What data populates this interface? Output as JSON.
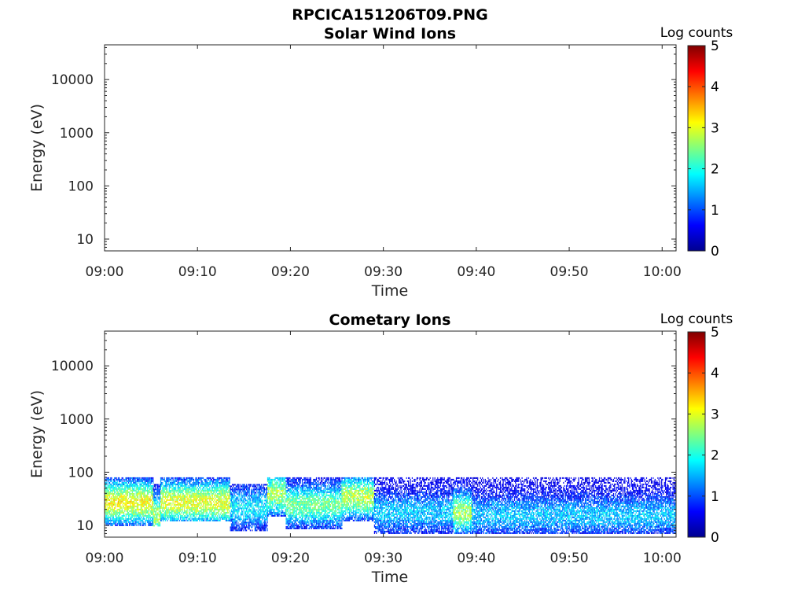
{
  "figure_title": "RPCICA151206T09.PNG",
  "colors": {
    "axis": "#262626",
    "colormap": "jet",
    "colormap_stops": [
      "#00008f",
      "#0000ff",
      "#00ffff",
      "#ffff00",
      "#ff0000",
      "#800000"
    ]
  },
  "chart_data": [
    {
      "type": "heatmap",
      "title": "Solar Wind Ions",
      "xlabel": "Time",
      "ylabel": "Energy (eV)",
      "x_tick_labels": [
        "09:00",
        "09:10",
        "09:20",
        "09:30",
        "09:40",
        "09:50",
        "10:00"
      ],
      "x_tick_minutes": [
        0,
        10,
        20,
        30,
        40,
        50,
        60
      ],
      "xlim_minutes": [
        0,
        61.5
      ],
      "y_scale": "log",
      "ylim": [
        6,
        45000
      ],
      "y_tick_labels": [
        "10",
        "100",
        "1000",
        "10000"
      ],
      "y_tick_values": [
        10,
        100,
        1000,
        10000
      ],
      "colorbar": {
        "label": "Log counts",
        "range": [
          0,
          5
        ],
        "tick_labels": [
          "0",
          "1",
          "2",
          "3",
          "4",
          "5"
        ]
      },
      "regions": []
    },
    {
      "type": "heatmap",
      "title": "Cometary Ions",
      "xlabel": "Time",
      "ylabel": "Energy (eV)",
      "x_tick_labels": [
        "09:00",
        "09:10",
        "09:20",
        "09:30",
        "09:40",
        "09:50",
        "10:00"
      ],
      "x_tick_minutes": [
        0,
        10,
        20,
        30,
        40,
        50,
        60
      ],
      "xlim_minutes": [
        0,
        61.5
      ],
      "y_scale": "log",
      "ylim": [
        6,
        45000
      ],
      "y_tick_labels": [
        "10",
        "100",
        "1000",
        "10000"
      ],
      "y_tick_values": [
        10,
        100,
        1000,
        10000
      ],
      "colorbar": {
        "label": "Log counts",
        "range": [
          0,
          5
        ],
        "tick_labels": [
          "0",
          "1",
          "2",
          "3",
          "4",
          "5"
        ]
      },
      "regions": [
        {
          "t_start": 0.0,
          "t_end": 5.2,
          "e_low": 10,
          "e_high": 80,
          "peak_e": 28,
          "peak_level": 3.1
        },
        {
          "t_start": 5.2,
          "t_end": 6.0,
          "e_low": 10,
          "e_high": 60,
          "peak_e": 16,
          "peak_level": 2.7
        },
        {
          "t_start": 6.0,
          "t_end": 13.5,
          "e_low": 12,
          "e_high": 80,
          "peak_e": 28,
          "peak_level": 3.0
        },
        {
          "t_start": 13.5,
          "t_end": 17.5,
          "e_low": 8,
          "e_high": 60,
          "peak_e": 22,
          "peak_level": 1.8
        },
        {
          "t_start": 17.5,
          "t_end": 19.5,
          "e_low": 15,
          "e_high": 80,
          "peak_e": 40,
          "peak_level": 2.7
        },
        {
          "t_start": 19.5,
          "t_end": 25.5,
          "e_low": 9,
          "e_high": 80,
          "peak_e": 25,
          "peak_level": 2.4
        },
        {
          "t_start": 25.5,
          "t_end": 29.0,
          "e_low": 12,
          "e_high": 80,
          "peak_e": 35,
          "peak_level": 2.8
        },
        {
          "t_start": 29.0,
          "t_end": 37.5,
          "e_low": 7,
          "e_high": 80,
          "peak_e": 18,
          "peak_level": 1.6
        },
        {
          "t_start": 37.5,
          "t_end": 39.5,
          "e_low": 7,
          "e_high": 80,
          "peak_e": 18,
          "peak_level": 2.7
        },
        {
          "t_start": 39.5,
          "t_end": 61.5,
          "e_low": 7,
          "e_high": 80,
          "peak_e": 16,
          "peak_level": 1.6
        }
      ]
    }
  ]
}
